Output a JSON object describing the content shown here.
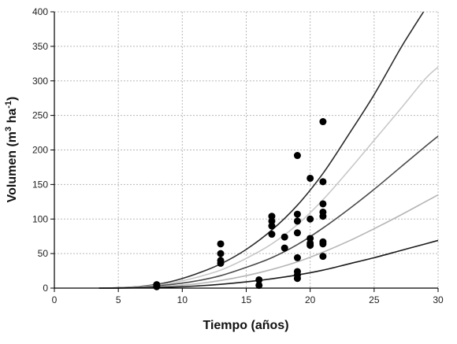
{
  "chart_data": {
    "type": "scatter",
    "title": "",
    "xlabel": "Tiempo (años)",
    "ylabel_parts": [
      "Volumen (m",
      "3",
      " ha",
      "-1",
      ")"
    ],
    "xlim": [
      0,
      30
    ],
    "ylim": [
      0,
      400
    ],
    "xticks": [
      0,
      5,
      10,
      15,
      20,
      25,
      30
    ],
    "yticks": [
      0,
      50,
      100,
      150,
      200,
      250,
      300,
      350,
      400
    ],
    "grid": true,
    "points": [
      {
        "x": 8,
        "y": 5
      },
      {
        "x": 8,
        "y": 2
      },
      {
        "x": 13,
        "y": 64
      },
      {
        "x": 13,
        "y": 50
      },
      {
        "x": 13,
        "y": 40
      },
      {
        "x": 13,
        "y": 36
      },
      {
        "x": 16,
        "y": 12
      },
      {
        "x": 16,
        "y": 4
      },
      {
        "x": 17,
        "y": 104
      },
      {
        "x": 17,
        "y": 97
      },
      {
        "x": 17,
        "y": 90
      },
      {
        "x": 17,
        "y": 78
      },
      {
        "x": 18,
        "y": 74
      },
      {
        "x": 18,
        "y": 58
      },
      {
        "x": 19,
        "y": 192
      },
      {
        "x": 19,
        "y": 107
      },
      {
        "x": 19,
        "y": 97
      },
      {
        "x": 19,
        "y": 80
      },
      {
        "x": 19,
        "y": 44
      },
      {
        "x": 19,
        "y": 24
      },
      {
        "x": 19,
        "y": 19
      },
      {
        "x": 19,
        "y": 14
      },
      {
        "x": 20,
        "y": 159
      },
      {
        "x": 20,
        "y": 100
      },
      {
        "x": 20,
        "y": 72
      },
      {
        "x": 20,
        "y": 65
      },
      {
        "x": 20,
        "y": 62
      },
      {
        "x": 21,
        "y": 241
      },
      {
        "x": 21,
        "y": 154
      },
      {
        "x": 21,
        "y": 122
      },
      {
        "x": 21,
        "y": 110
      },
      {
        "x": 21,
        "y": 104
      },
      {
        "x": 21,
        "y": 67
      },
      {
        "x": 21,
        "y": 64
      },
      {
        "x": 21,
        "y": 46
      }
    ],
    "curves": [
      {
        "color": "#2b2b2b",
        "x": [
          3.5,
          5,
          7,
          9,
          11,
          13,
          15,
          17,
          19,
          21,
          23,
          25,
          27,
          28,
          29
        ],
        "y": [
          0,
          0.5,
          3,
          9,
          20,
          35,
          56,
          84,
          120,
          166,
          222,
          280,
          345,
          375,
          404
        ]
      },
      {
        "color": "#c8c8c8",
        "x": [
          3.5,
          5,
          7,
          9,
          11,
          13,
          15,
          17,
          19,
          21,
          23,
          25,
          27,
          29,
          30
        ],
        "y": [
          0,
          0.4,
          2.5,
          7,
          15,
          26,
          43,
          64,
          92,
          128,
          170,
          214,
          258,
          303,
          320
        ]
      },
      {
        "color": "#4a4a4a",
        "x": [
          3.5,
          5,
          7,
          9,
          11,
          13,
          15,
          17,
          19,
          21,
          23,
          25,
          27,
          29,
          30
        ],
        "y": [
          0,
          0.3,
          1.8,
          5,
          10,
          18,
          30,
          44,
          63,
          87,
          114,
          143,
          174,
          205,
          220
        ]
      },
      {
        "color": "#b5b5b5",
        "x": [
          3.5,
          5,
          7,
          9,
          11,
          13,
          15,
          17,
          19,
          21,
          23,
          25,
          27,
          29,
          30
        ],
        "y": [
          0,
          0.2,
          1.1,
          3,
          6,
          11,
          18,
          27,
          38,
          52,
          68,
          86,
          105,
          125,
          135
        ]
      },
      {
        "color": "#1a1a1a",
        "x": [
          3.5,
          5,
          7,
          9,
          11,
          13,
          15,
          17,
          19,
          21,
          23,
          25,
          27,
          29,
          30
        ],
        "y": [
          0,
          0.1,
          0.5,
          1.4,
          3,
          5.5,
          9,
          13.5,
          19,
          26,
          35,
          44,
          54,
          64,
          69
        ]
      }
    ]
  }
}
